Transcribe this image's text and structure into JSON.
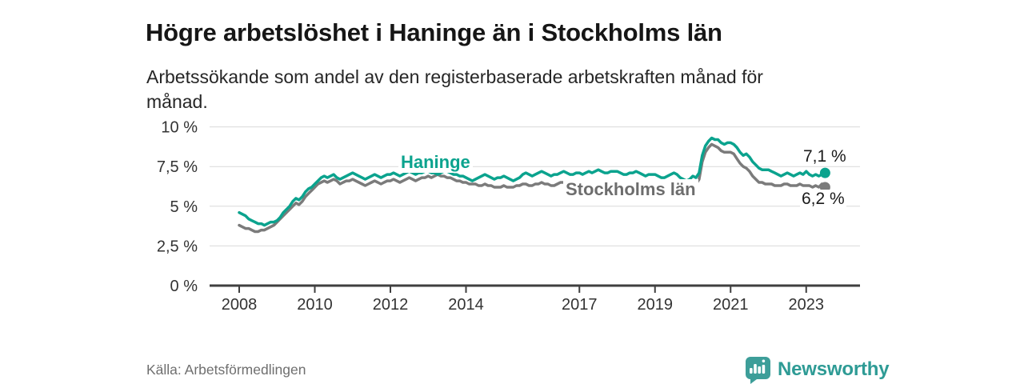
{
  "header": {
    "title": "Högre arbetslöshet i Haninge än i Stockholms län",
    "subtitle": "Arbetssökande som andel av den registerbaserade arbetskraften månad för månad."
  },
  "chart_data": {
    "type": "line",
    "unit": "%",
    "x_start": "2008-01",
    "x_end": "2023-07",
    "x_interval": "monthly",
    "x_tick_years": [
      2008,
      2010,
      2012,
      2014,
      2017,
      2019,
      2021,
      2023
    ],
    "x_tick_labels": [
      "2008",
      "2010",
      "2012",
      "2014",
      "2017",
      "2019",
      "2021",
      "2023"
    ],
    "y_ticks": [
      0,
      2.5,
      5,
      7.5,
      10
    ],
    "y_tick_labels": [
      "0 %",
      "2,5 %",
      "5 %",
      "7,5 %",
      "10 %"
    ],
    "ylim": [
      0,
      10.5
    ],
    "grid": "horizontal",
    "legend_position": "inline-labels",
    "series": [
      {
        "name": "Haninge",
        "label": "Haninge",
        "color": "#0ba38e",
        "end_label": "7,1 %",
        "end_value": 7.1,
        "values": [
          4.6,
          4.5,
          4.4,
          4.2,
          4.1,
          4.0,
          3.9,
          3.9,
          3.8,
          3.9,
          4.0,
          4.0,
          4.1,
          4.3,
          4.6,
          4.8,
          5.0,
          5.3,
          5.5,
          5.4,
          5.6,
          5.9,
          6.1,
          6.2,
          6.4,
          6.6,
          6.8,
          6.9,
          6.8,
          6.9,
          7.0,
          6.8,
          6.7,
          6.8,
          6.9,
          7.0,
          7.1,
          7.0,
          6.9,
          6.8,
          6.7,
          6.8,
          6.9,
          7.0,
          6.9,
          6.8,
          6.9,
          7.0,
          7.0,
          7.1,
          7.0,
          6.9,
          7.0,
          7.1,
          7.2,
          7.1,
          7.0,
          7.1,
          7.1,
          7.2,
          7.2,
          7.1,
          7.1,
          7.0,
          7.1,
          7.2,
          7.2,
          7.1,
          7.0,
          7.0,
          6.9,
          6.9,
          6.8,
          6.7,
          6.6,
          6.7,
          6.8,
          6.9,
          7.0,
          6.9,
          6.8,
          6.7,
          6.8,
          6.8,
          6.9,
          6.8,
          6.7,
          6.6,
          6.7,
          6.8,
          7.0,
          7.1,
          7.0,
          6.9,
          7.0,
          7.1,
          7.2,
          7.1,
          7.0,
          6.9,
          7.0,
          7.0,
          7.1,
          7.2,
          7.1,
          7.0,
          7.0,
          7.1,
          7.1,
          7.0,
          7.1,
          7.2,
          7.1,
          7.2,
          7.3,
          7.2,
          7.1,
          7.1,
          7.2,
          7.2,
          7.2,
          7.1,
          7.0,
          7.0,
          7.1,
          7.1,
          7.2,
          7.1,
          7.0,
          6.9,
          7.0,
          7.0,
          7.0,
          6.9,
          6.8,
          6.8,
          6.9,
          7.0,
          7.1,
          7.0,
          6.8,
          6.7,
          6.6,
          6.7,
          6.9,
          6.8,
          7.1,
          8.2,
          8.8,
          9.1,
          9.3,
          9.2,
          9.2,
          9.0,
          8.9,
          9.0,
          9.0,
          8.9,
          8.7,
          8.4,
          8.2,
          8.3,
          8.1,
          7.8,
          7.6,
          7.4,
          7.3,
          7.3,
          7.3,
          7.2,
          7.1,
          7.0,
          6.9,
          7.0,
          7.1,
          7.0,
          6.9,
          7.0,
          7.1,
          7.0,
          7.2,
          7.0,
          6.9,
          7.0,
          6.9,
          7.0,
          7.1
        ]
      },
      {
        "name": "Stockholms län",
        "label": "Stockholms län",
        "color": "#7b7b7b",
        "end_label": "6,2 %",
        "end_value": 6.2,
        "values": [
          3.8,
          3.7,
          3.6,
          3.6,
          3.5,
          3.4,
          3.4,
          3.5,
          3.5,
          3.6,
          3.7,
          3.8,
          4.0,
          4.2,
          4.4,
          4.6,
          4.8,
          5.0,
          5.2,
          5.1,
          5.3,
          5.6,
          5.8,
          6.0,
          6.2,
          6.4,
          6.5,
          6.6,
          6.5,
          6.6,
          6.7,
          6.6,
          6.4,
          6.5,
          6.6,
          6.6,
          6.7,
          6.6,
          6.5,
          6.4,
          6.3,
          6.4,
          6.5,
          6.6,
          6.5,
          6.4,
          6.5,
          6.6,
          6.6,
          6.7,
          6.6,
          6.5,
          6.6,
          6.7,
          6.8,
          6.7,
          6.6,
          6.7,
          6.8,
          6.8,
          6.9,
          6.8,
          6.9,
          7.0,
          6.9,
          6.9,
          6.8,
          6.8,
          6.7,
          6.6,
          6.6,
          6.5,
          6.5,
          6.4,
          6.4,
          6.4,
          6.3,
          6.3,
          6.4,
          6.3,
          6.3,
          6.2,
          6.2,
          6.2,
          6.3,
          6.2,
          6.2,
          6.2,
          6.3,
          6.3,
          6.4,
          6.4,
          6.3,
          6.3,
          6.4,
          6.4,
          6.5,
          6.4,
          6.4,
          6.3,
          6.3,
          6.4,
          6.5,
          6.5,
          6.4,
          6.4,
          6.4,
          6.5,
          6.5,
          6.4,
          6.4,
          6.4,
          6.3,
          6.3,
          6.4,
          6.4,
          6.3,
          6.2,
          6.2,
          6.3,
          6.3,
          6.2,
          6.2,
          6.2,
          6.3,
          6.3,
          6.4,
          6.3,
          6.2,
          6.2,
          6.2,
          6.3,
          6.3,
          6.2,
          6.2,
          6.2,
          6.3,
          6.3,
          6.4,
          6.3,
          6.3,
          6.2,
          6.2,
          6.3,
          6.4,
          6.4,
          6.7,
          7.8,
          8.4,
          8.7,
          8.9,
          8.8,
          8.7,
          8.5,
          8.4,
          8.4,
          8.4,
          8.3,
          8.0,
          7.7,
          7.5,
          7.4,
          7.2,
          6.9,
          6.7,
          6.5,
          6.5,
          6.4,
          6.4,
          6.4,
          6.3,
          6.3,
          6.3,
          6.4,
          6.4,
          6.3,
          6.3,
          6.3,
          6.4,
          6.3,
          6.3,
          6.3,
          6.2,
          6.3,
          6.2,
          6.4,
          6.2
        ]
      }
    ]
  },
  "footer": {
    "source": "Källa: Arbetsförmedlingen",
    "logo_text": "Newsworthy"
  },
  "colors": {
    "accent_teal": "#0ba38e",
    "line_gray": "#7b7b7b",
    "logo_teal": "#3d9e99",
    "logo_text_teal": "#2e9b95",
    "title_text": "#161616",
    "axis_text": "#333333",
    "grid_line": "#d9d9d9",
    "axis_line": "#3f3f3f",
    "source_text": "#6f6f6f"
  }
}
